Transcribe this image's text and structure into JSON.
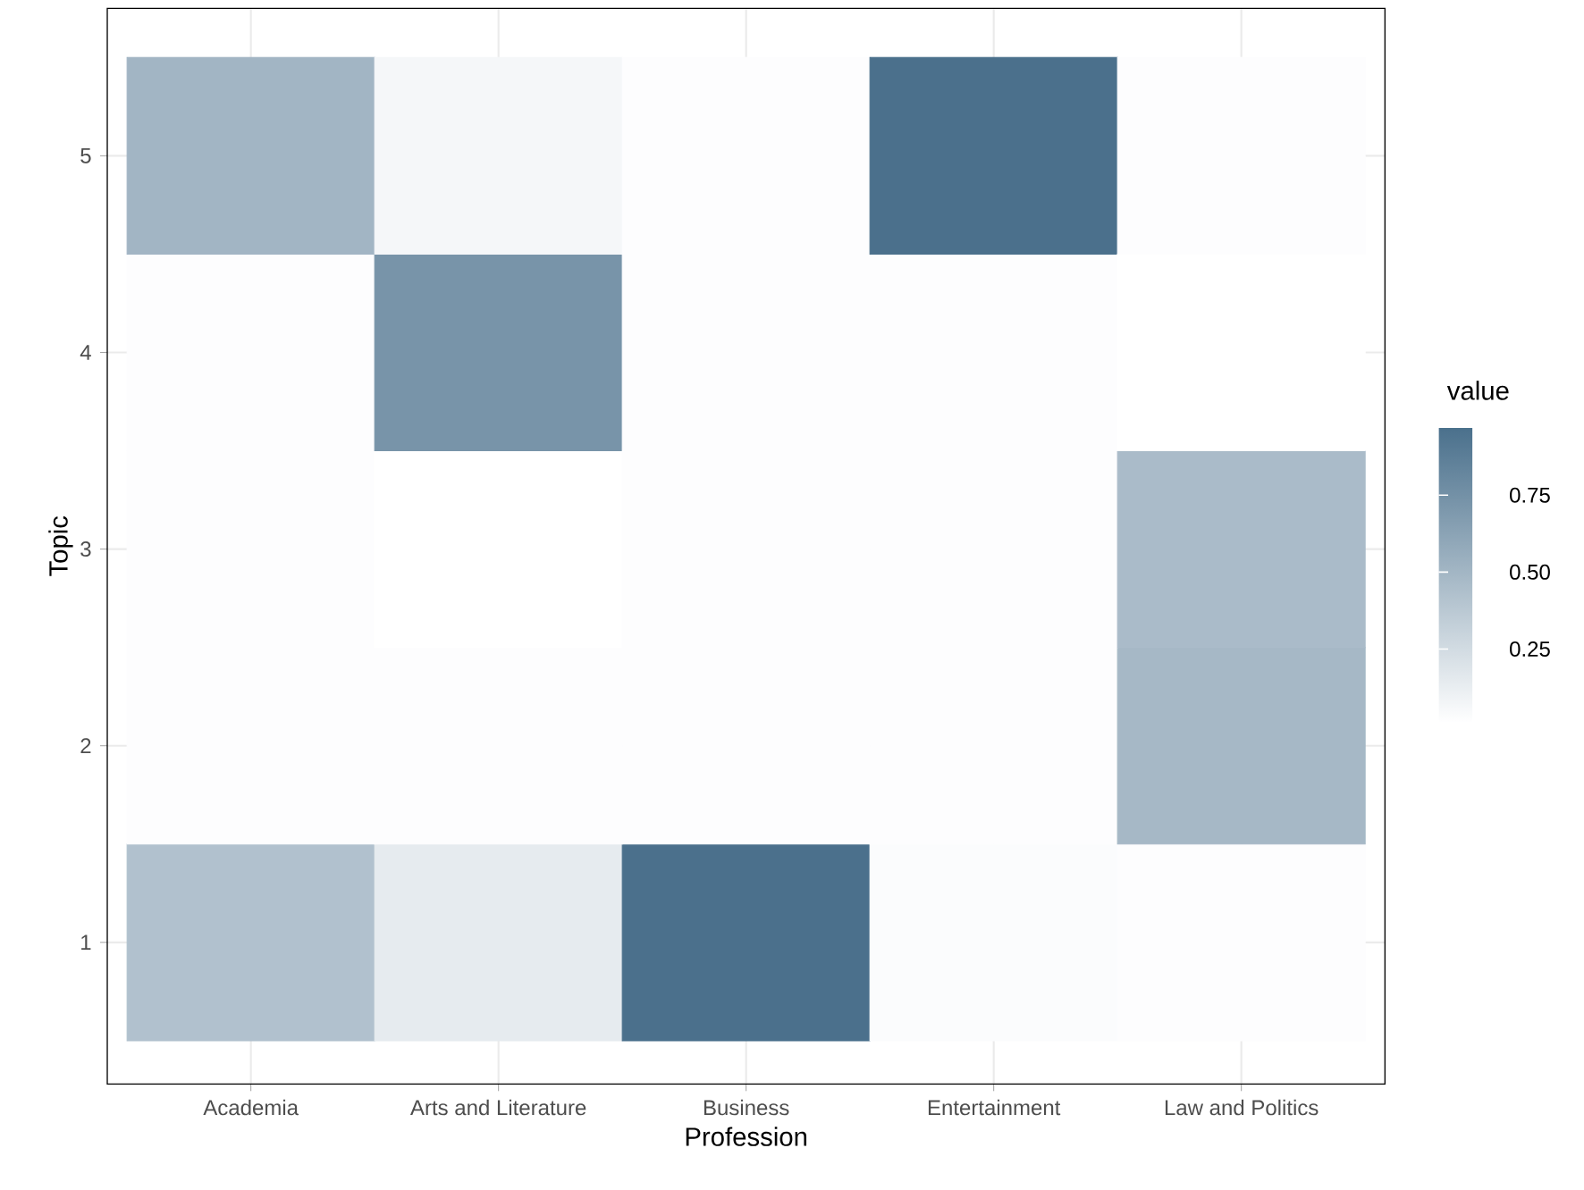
{
  "chart_data": {
    "type": "heatmap",
    "xlabel": "Profession",
    "ylabel": "Topic",
    "clabel": "value",
    "categories": [
      "Academia",
      "Arts and Literature",
      "Business",
      "Entertainment",
      "Law and Politics"
    ],
    "y_categories": [
      "5",
      "4",
      "3",
      "2",
      "1"
    ],
    "cells": [
      [
        0.5,
        0.06,
        0.02,
        0.96,
        0.02
      ],
      [
        0.02,
        0.72,
        0.02,
        0.02,
        0.01
      ],
      [
        0.02,
        0.01,
        0.02,
        0.02,
        0.46
      ],
      [
        0.02,
        0.02,
        0.02,
        0.02,
        0.48
      ],
      [
        0.42,
        0.14,
        0.96,
        0.03,
        0.02
      ]
    ],
    "clim": [
      0.01,
      0.97
    ],
    "cticks": [
      0.25,
      {
        "value": 0.5,
        "label": "0.50"
      },
      0.75
    ],
    "grid": true
  }
}
